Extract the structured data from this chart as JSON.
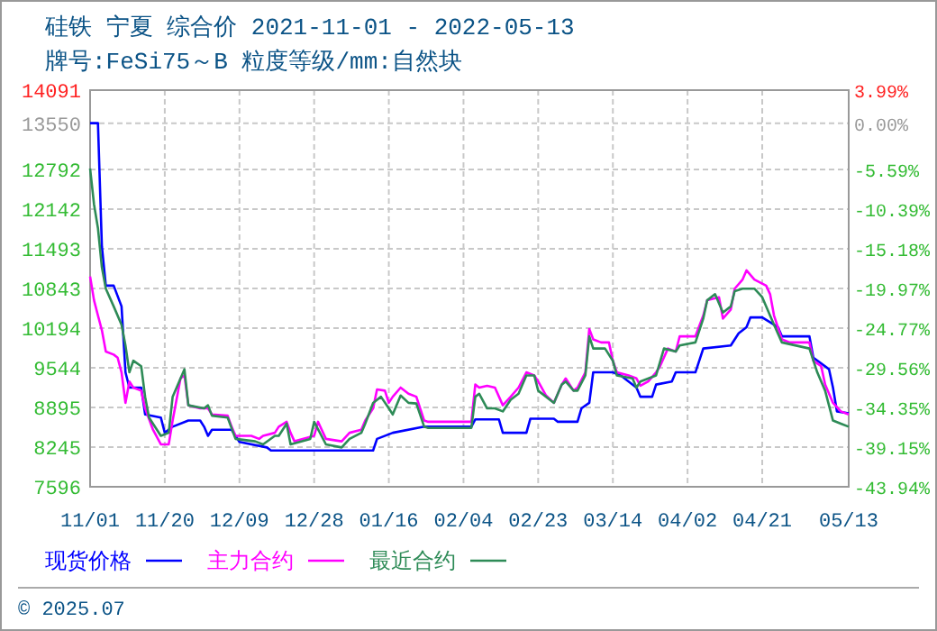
{
  "chart_data": {
    "type": "line",
    "title": "硅铁 宁夏 综合价 2021-11-01 - 2022-05-13",
    "subtitle": "牌号:FeSi75～B 粒度等级/mm:自然块",
    "xlim": [
      "2021-11-01",
      "2022-05-13"
    ],
    "xticks": [
      {
        "value": "2021-11-01",
        "label": "11/01"
      },
      {
        "value": "2021-11-20",
        "label": "11/20"
      },
      {
        "value": "2021-12-09",
        "label": "12/09"
      },
      {
        "value": "2021-12-28",
        "label": "12/28"
      },
      {
        "value": "2022-01-16",
        "label": "01/16"
      },
      {
        "value": "2022-02-04",
        "label": "02/04"
      },
      {
        "value": "2022-02-23",
        "label": "02/23"
      },
      {
        "value": "2022-03-14",
        "label": "03/14"
      },
      {
        "value": "2022-04-02",
        "label": "04/02"
      },
      {
        "value": "2022-04-21",
        "label": "04/21"
      },
      {
        "value": "2022-05-13",
        "label": "05/13"
      }
    ],
    "ylim": [
      7596,
      14091
    ],
    "yticks": [
      7596,
      8245,
      8895,
      9544,
      10194,
      10843,
      11493,
      12142,
      12792,
      13550,
      14091
    ],
    "y2lim": [
      -43.94,
      3.99
    ],
    "y2ticks": [
      {
        "value": -43.94,
        "label": "-43.94%"
      },
      {
        "value": -39.15,
        "label": "-39.15%"
      },
      {
        "value": -34.35,
        "label": "-34.35%"
      },
      {
        "value": -29.56,
        "label": "-29.56%"
      },
      {
        "value": -24.77,
        "label": "-24.77%"
      },
      {
        "value": -19.97,
        "label": "-19.97%"
      },
      {
        "value": -15.18,
        "label": "-15.18%"
      },
      {
        "value": -10.39,
        "label": "-10.39%"
      },
      {
        "value": -5.59,
        "label": "-5.59%"
      },
      {
        "value": 0,
        "label": "0.00%"
      },
      {
        "value": 3.99,
        "label": "3.99%"
      }
    ],
    "grid": true,
    "legend": "bottom",
    "series": [
      {
        "name": "现货价格",
        "color": "#0000ff",
        "x": [
          "2021-11-01",
          "2021-11-03",
          "2021-11-04",
          "2021-11-05",
          "2021-11-07",
          "2021-11-09",
          "2021-11-10",
          "2021-11-11",
          "2021-11-14",
          "2021-11-15",
          "2021-11-19",
          "2021-11-20",
          "2021-11-22",
          "2021-11-26",
          "2021-11-29",
          "2021-11-30",
          "2021-12-01",
          "2021-12-02",
          "2021-12-07",
          "2021-12-09",
          "2021-12-16",
          "2021-12-17",
          "2022-01-12",
          "2022-01-13",
          "2022-01-17",
          "2022-01-25",
          "2022-02-06",
          "2022-02-07",
          "2022-02-13",
          "2022-02-14",
          "2022-02-20",
          "2022-02-21",
          "2022-02-27",
          "2022-02-28",
          "2022-03-05",
          "2022-03-06",
          "2022-03-08",
          "2022-03-09",
          "2022-03-14",
          "2022-03-16",
          "2022-03-20",
          "2022-03-21",
          "2022-03-24",
          "2022-03-25",
          "2022-03-29",
          "2022-03-30",
          "2022-04-04",
          "2022-04-06",
          "2022-04-13",
          "2022-04-15",
          "2022-04-17",
          "2022-04-18",
          "2022-04-21",
          "2022-04-25",
          "2022-04-26",
          "2022-05-03",
          "2022-05-04",
          "2022-05-08",
          "2022-05-09",
          "2022-05-10",
          "2022-05-13"
        ],
        "values": [
          13550,
          13550,
          11530,
          10890,
          10890,
          10550,
          9470,
          9220,
          9220,
          8780,
          8730,
          8480,
          8580,
          8680,
          8680,
          8580,
          8430,
          8530,
          8530,
          8330,
          8240,
          8190,
          8190,
          8380,
          8480,
          8580,
          8580,
          8700,
          8700,
          8480,
          8480,
          8710,
          8710,
          8660,
          8660,
          8880,
          8970,
          9470,
          9470,
          9420,
          9220,
          9070,
          9070,
          9270,
          9320,
          9470,
          9470,
          9860,
          9910,
          10110,
          10210,
          10370,
          10370,
          10210,
          10060,
          10060,
          9710,
          9520,
          9220,
          8830,
          8800
        ]
      },
      {
        "name": "主力合约",
        "color": "#ff00ff",
        "x": [
          "2021-11-01",
          "2021-11-02",
          "2021-11-03",
          "2021-11-04",
          "2021-11-05",
          "2021-11-07",
          "2021-11-08",
          "2021-11-09",
          "2021-11-10",
          "2021-11-11",
          "2021-11-12",
          "2021-11-14",
          "2021-11-15",
          "2021-11-17",
          "2021-11-19",
          "2021-11-21",
          "2021-11-22",
          "2021-11-24",
          "2021-11-25",
          "2021-11-26",
          "2021-11-29",
          "2021-12-01",
          "2021-12-02",
          "2021-12-06",
          "2021-12-07",
          "2021-12-08",
          "2021-12-12",
          "2021-12-14",
          "2021-12-15",
          "2021-12-18",
          "2021-12-19",
          "2021-12-21",
          "2021-12-22",
          "2021-12-23",
          "2021-12-28",
          "2021-12-29",
          "2021-12-31",
          "2022-01-04",
          "2022-01-06",
          "2022-01-09",
          "2022-01-10",
          "2022-01-12",
          "2022-01-13",
          "2022-01-15",
          "2022-01-16",
          "2022-01-17",
          "2022-01-19",
          "2022-01-21",
          "2022-01-23",
          "2022-01-25",
          "2022-01-26",
          "2022-02-06",
          "2022-02-07",
          "2022-02-08",
          "2022-02-10",
          "2022-02-12",
          "2022-02-14",
          "2022-02-16",
          "2022-02-18",
          "2022-02-20",
          "2022-02-22",
          "2022-02-23",
          "2022-02-25",
          "2022-02-27",
          "2022-03-01",
          "2022-03-02",
          "2022-03-04",
          "2022-03-05",
          "2022-03-07",
          "2022-03-08",
          "2022-03-09",
          "2022-03-11",
          "2022-03-13",
          "2022-03-14",
          "2022-03-15",
          "2022-03-18",
          "2022-03-20",
          "2022-03-21",
          "2022-03-23",
          "2022-03-25",
          "2022-03-26",
          "2022-03-28",
          "2022-03-30",
          "2022-03-31",
          "2022-04-04",
          "2022-04-06",
          "2022-04-07",
          "2022-04-10",
          "2022-04-11",
          "2022-04-13",
          "2022-04-14",
          "2022-04-16",
          "2022-04-17",
          "2022-04-19",
          "2022-04-22",
          "2022-04-23",
          "2022-04-24",
          "2022-04-26",
          "2022-04-28",
          "2022-05-03",
          "2022-05-04",
          "2022-05-06",
          "2022-05-07",
          "2022-05-09",
          "2022-05-11",
          "2022-05-13"
        ],
        "values": [
          11040,
          10650,
          10400,
          10160,
          9810,
          9760,
          9710,
          9470,
          8970,
          9320,
          9220,
          9170,
          8880,
          8530,
          8290,
          8290,
          8680,
          9370,
          9420,
          8930,
          8880,
          8880,
          8780,
          8760,
          8580,
          8430,
          8430,
          8380,
          8430,
          8480,
          8580,
          8660,
          8480,
          8340,
          8430,
          8660,
          8380,
          8340,
          8480,
          8530,
          8680,
          8880,
          9190,
          9170,
          8970,
          9070,
          9220,
          9120,
          9070,
          8680,
          8660,
          8660,
          9270,
          9220,
          9250,
          9220,
          8930,
          9070,
          9220,
          9470,
          9420,
          9320,
          9090,
          8970,
          9270,
          9370,
          9170,
          9220,
          9470,
          10180,
          10010,
          9960,
          9960,
          9660,
          9470,
          9420,
          9370,
          9250,
          9320,
          9470,
          9570,
          9860,
          9810,
          10060,
          10060,
          10400,
          10650,
          10700,
          10350,
          10500,
          10840,
          10990,
          11140,
          10990,
          10890,
          10750,
          10400,
          10010,
          9960,
          9960,
          9660,
          9570,
          9270,
          8970,
          8830,
          8780
        ]
      },
      {
        "name": "最近合约",
        "color": "#2e8b57",
        "x": [
          "2021-11-01",
          "2021-11-02",
          "2021-11-03",
          "2021-11-04",
          "2021-11-05",
          "2021-11-07",
          "2021-11-09",
          "2021-11-10",
          "2021-11-11",
          "2021-11-12",
          "2021-11-14",
          "2021-11-15",
          "2021-11-16",
          "2021-11-19",
          "2021-11-21",
          "2021-11-22",
          "2021-11-25",
          "2021-11-26",
          "2021-11-30",
          "2021-12-01",
          "2021-12-02",
          "2021-12-06",
          "2021-12-08",
          "2021-12-13",
          "2021-12-15",
          "2021-12-18",
          "2021-12-19",
          "2021-12-21",
          "2021-12-22",
          "2021-12-27",
          "2021-12-28",
          "2021-12-31",
          "2022-01-04",
          "2022-01-06",
          "2022-01-09",
          "2022-01-10",
          "2022-01-12",
          "2022-01-14",
          "2022-01-16",
          "2022-01-17",
          "2022-01-19",
          "2022-01-21",
          "2022-01-23",
          "2022-01-25",
          "2022-01-26",
          "2022-02-06",
          "2022-02-07",
          "2022-02-08",
          "2022-02-10",
          "2022-02-12",
          "2022-02-14",
          "2022-02-16",
          "2022-02-18",
          "2022-02-20",
          "2022-02-22",
          "2022-02-23",
          "2022-02-25",
          "2022-02-27",
          "2022-03-01",
          "2022-03-02",
          "2022-03-04",
          "2022-03-05",
          "2022-03-07",
          "2022-03-08",
          "2022-03-09",
          "2022-03-12",
          "2022-03-14",
          "2022-03-15",
          "2022-03-19",
          "2022-03-20",
          "2022-03-21",
          "2022-03-25",
          "2022-03-27",
          "2022-03-30",
          "2022-03-31",
          "2022-04-04",
          "2022-04-06",
          "2022-04-07",
          "2022-04-09",
          "2022-04-11",
          "2022-04-13",
          "2022-04-14",
          "2022-04-16",
          "2022-04-19",
          "2022-04-21",
          "2022-04-24",
          "2022-04-26",
          "2022-05-03",
          "2022-05-05",
          "2022-05-07",
          "2022-05-09",
          "2022-05-11",
          "2022-05-13"
        ],
        "values": [
          12810,
          12220,
          11830,
          11190,
          10840,
          10550,
          10250,
          9910,
          9470,
          9660,
          9570,
          9070,
          8730,
          8430,
          8480,
          9070,
          9520,
          8930,
          8880,
          8930,
          8760,
          8730,
          8380,
          8340,
          8290,
          8430,
          8430,
          8630,
          8290,
          8380,
          8660,
          8290,
          8240,
          8380,
          8480,
          8630,
          8970,
          9070,
          8880,
          8780,
          9090,
          8970,
          8960,
          8580,
          8560,
          8560,
          9070,
          9120,
          8880,
          8880,
          8830,
          9020,
          9120,
          9420,
          9420,
          9170,
          9070,
          8970,
          9270,
          9320,
          9170,
          9170,
          9420,
          10060,
          9860,
          9860,
          9660,
          9420,
          9370,
          9220,
          9320,
          9420,
          9860,
          9810,
          9910,
          9960,
          10350,
          10650,
          10750,
          10450,
          10550,
          10800,
          10840,
          10840,
          10700,
          10250,
          9960,
          9860,
          9470,
          9170,
          8680,
          8630,
          8580
        ]
      }
    ],
    "annotations": [
      "© 2025.07"
    ]
  }
}
